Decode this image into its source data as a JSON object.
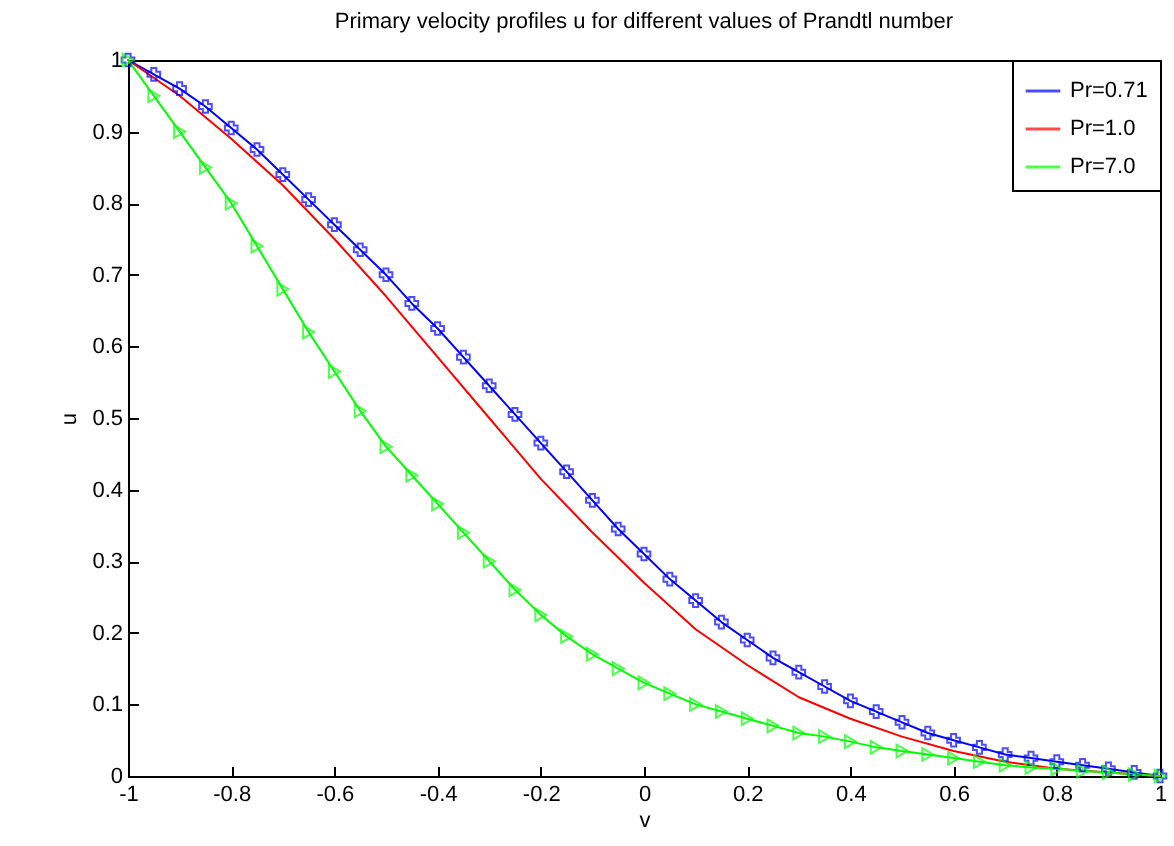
{
  "chart_data": {
    "type": "line",
    "title": "Primary velocity  profiles u for different values of Prandtl number",
    "xlabel": "v",
    "ylabel": "u",
    "xlim": [
      -1,
      1
    ],
    "ylim": [
      0,
      1
    ],
    "xticks": [
      -1,
      -0.8,
      -0.6,
      -0.4,
      -0.2,
      0,
      0.2,
      0.4,
      0.6,
      0.8,
      1
    ],
    "yticks": [
      0,
      0.1,
      0.2,
      0.3,
      0.4,
      0.5,
      0.6,
      0.7,
      0.8,
      0.9,
      1
    ],
    "grid": false,
    "legend": "top right",
    "series": [
      {
        "name": "Pr=0.71",
        "color": "#0000ff",
        "marker": "cross",
        "x": [
          -1,
          -0.95,
          -0.9,
          -0.85,
          -0.8,
          -0.75,
          -0.7,
          -0.65,
          -0.6,
          -0.55,
          -0.5,
          -0.45,
          -0.4,
          -0.35,
          -0.3,
          -0.25,
          -0.2,
          -0.15,
          -0.1,
          -0.05,
          0,
          0.05,
          0.1,
          0.15,
          0.2,
          0.25,
          0.3,
          0.35,
          0.4,
          0.45,
          0.5,
          0.55,
          0.6,
          0.65,
          0.7,
          0.75,
          0.8,
          0.85,
          0.9,
          0.95,
          1
        ],
        "values": [
          1,
          0.98,
          0.96,
          0.935,
          0.905,
          0.875,
          0.84,
          0.805,
          0.77,
          0.735,
          0.7,
          0.66,
          0.625,
          0.585,
          0.545,
          0.505,
          0.465,
          0.425,
          0.385,
          0.345,
          0.31,
          0.275,
          0.245,
          0.215,
          0.19,
          0.165,
          0.145,
          0.125,
          0.105,
          0.09,
          0.075,
          0.06,
          0.05,
          0.04,
          0.03,
          0.025,
          0.02,
          0.015,
          0.01,
          0.005,
          0
        ]
      },
      {
        "name": "Pr=1.0",
        "color": "#ff0000",
        "marker": "none",
        "x": [
          -1,
          -0.9,
          -0.8,
          -0.7,
          -0.6,
          -0.5,
          -0.4,
          -0.3,
          -0.2,
          -0.1,
          0,
          0.1,
          0.2,
          0.3,
          0.4,
          0.5,
          0.6,
          0.7,
          0.8,
          0.9,
          1
        ],
        "values": [
          1,
          0.95,
          0.89,
          0.825,
          0.75,
          0.67,
          0.585,
          0.5,
          0.415,
          0.34,
          0.27,
          0.205,
          0.155,
          0.11,
          0.08,
          0.055,
          0.035,
          0.02,
          0.01,
          0.005,
          0
        ]
      },
      {
        "name": "Pr=7.0",
        "color": "#00ff00",
        "marker": "triangle",
        "x": [
          -1,
          -0.95,
          -0.9,
          -0.85,
          -0.8,
          -0.75,
          -0.7,
          -0.65,
          -0.6,
          -0.55,
          -0.5,
          -0.45,
          -0.4,
          -0.35,
          -0.3,
          -0.25,
          -0.2,
          -0.15,
          -0.1,
          -0.05,
          0,
          0.05,
          0.1,
          0.15,
          0.2,
          0.25,
          0.3,
          0.35,
          0.4,
          0.45,
          0.5,
          0.55,
          0.6,
          0.65,
          0.7,
          0.75,
          0.8,
          0.85,
          0.9,
          0.95,
          1
        ],
        "values": [
          1,
          0.95,
          0.9,
          0.85,
          0.8,
          0.74,
          0.68,
          0.62,
          0.565,
          0.51,
          0.46,
          0.42,
          0.38,
          0.34,
          0.3,
          0.26,
          0.225,
          0.195,
          0.17,
          0.15,
          0.13,
          0.115,
          0.1,
          0.09,
          0.08,
          0.07,
          0.06,
          0.055,
          0.048,
          0.04,
          0.035,
          0.03,
          0.025,
          0.02,
          0.015,
          0.012,
          0.01,
          0.007,
          0.005,
          0.002,
          0
        ]
      }
    ]
  }
}
